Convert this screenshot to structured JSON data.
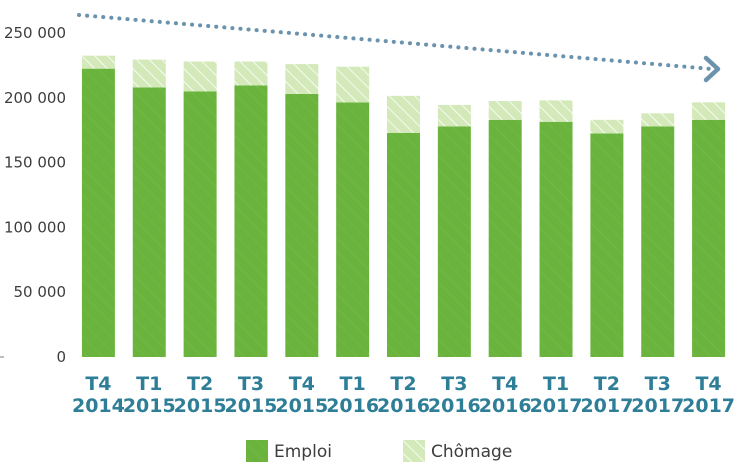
{
  "chart_data": {
    "type": "bar",
    "stacked": true,
    "categories": [
      [
        "T4",
        "2014"
      ],
      [
        "T1",
        "2015"
      ],
      [
        "T2",
        "2015"
      ],
      [
        "T3",
        "2015"
      ],
      [
        "T4",
        "2015"
      ],
      [
        "T1",
        "2016"
      ],
      [
        "T2",
        "2016"
      ],
      [
        "T3",
        "2016"
      ],
      [
        "T4",
        "2016"
      ],
      [
        "T1",
        "2017"
      ],
      [
        "T2",
        "2017"
      ],
      [
        "T3",
        "2017"
      ],
      [
        "T4",
        "2017"
      ]
    ],
    "series": [
      {
        "name": "Emploi",
        "color": "#6ab43e",
        "values": [
          222500,
          208000,
          205000,
          209500,
          203000,
          196500,
          173000,
          178000,
          183000,
          181500,
          172500,
          178000,
          183000
        ]
      },
      {
        "name": "Chômage",
        "color": "#d3e9b9",
        "hatched": true,
        "values": [
          10000,
          21500,
          23000,
          18500,
          23000,
          27500,
          28500,
          16500,
          14500,
          16500,
          10500,
          10000,
          13500
        ]
      }
    ],
    "yticks": [
      "0",
      "50 000",
      "100 000",
      "150 000",
      "200 000",
      "250 000"
    ],
    "ylim": [
      0,
      250000
    ],
    "trend": {
      "style": "dotted arrow",
      "direction": "downward",
      "color": "#6b93ad"
    },
    "legend": {
      "position": "bottom"
    }
  }
}
